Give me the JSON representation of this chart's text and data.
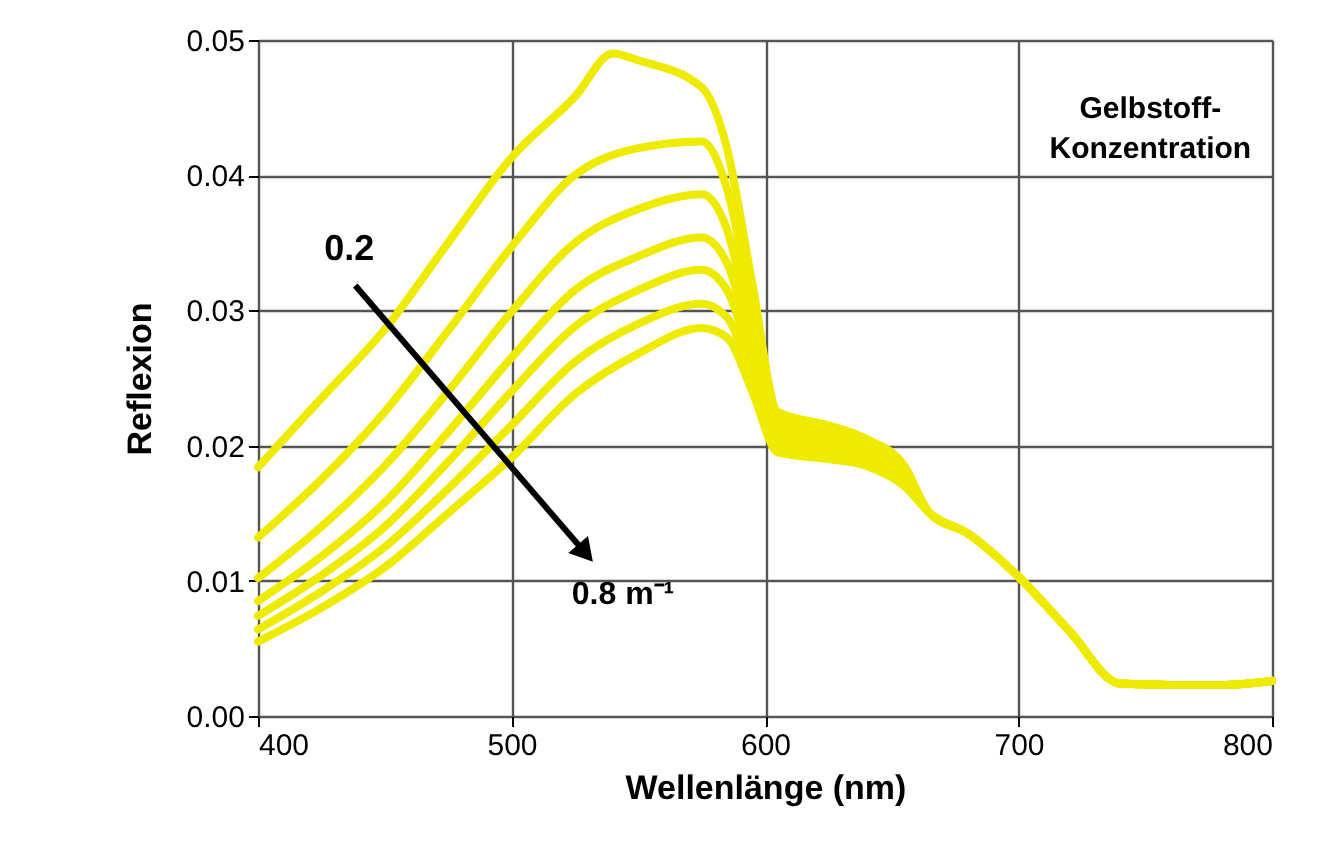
{
  "chart_data": {
    "type": "line",
    "xlabel": "Wellenlänge (nm)",
    "ylabel": "Reflexion",
    "xlim": [
      400,
      800
    ],
    "xticks": [
      400,
      500,
      600,
      700,
      800
    ],
    "ylim": [
      0,
      0.05
    ],
    "yticks": [
      {
        "value": 0,
        "label": "0.00"
      },
      {
        "value": 0.01,
        "label": "0.01"
      },
      {
        "value": 0.02,
        "label": "0.02"
      },
      {
        "value": 0.03,
        "label": "0.03"
      },
      {
        "value": 0.04,
        "label": "0.04"
      },
      {
        "value": 0.05,
        "label": "0.05"
      }
    ],
    "grid": true,
    "marker": "none",
    "line_style": "solid",
    "annotations": [
      "0.2",
      "0.8 m⁻¹",
      "Gelbstoff-\nKonzentration"
    ],
    "series": [
      {
        "color": "#eeea00",
        "x": [
          400,
          425,
          450,
          475,
          500,
          525,
          540,
          550,
          575,
          585,
          595,
          605,
          625,
          640,
          655,
          665,
          680,
          700,
          720,
          740,
          760,
          780,
          800
        ],
        "values": [
          0.0184,
          0.0235,
          0.0286,
          0.035,
          0.0413,
          0.0458,
          0.049,
          0.0485,
          0.0465,
          0.042,
          0.032,
          0.0225,
          0.0215,
          0.0205,
          0.0185,
          0.015,
          0.0135,
          0.0103,
          0.0063,
          0.0024,
          0.0023,
          0.0023,
          0.0026
        ]
      },
      {
        "color": "#eeea00",
        "x": [
          400,
          425,
          450,
          475,
          500,
          525,
          550,
          575,
          585,
          595,
          605,
          625,
          640,
          655,
          665,
          680,
          700,
          720,
          740,
          760,
          780,
          800
        ],
        "values": [
          0.0132,
          0.0175,
          0.0225,
          0.0285,
          0.0347,
          0.04,
          0.042,
          0.0425,
          0.039,
          0.03,
          0.022,
          0.021,
          0.02,
          0.018,
          0.015,
          0.0135,
          0.0103,
          0.0063,
          0.0024,
          0.0023,
          0.0023,
          0.0026
        ]
      },
      {
        "color": "#eeea00",
        "x": [
          400,
          425,
          450,
          475,
          500,
          525,
          550,
          575,
          585,
          595,
          605,
          625,
          640,
          655,
          665,
          680,
          700,
          720,
          740,
          760,
          780,
          800
        ],
        "values": [
          0.0102,
          0.014,
          0.0185,
          0.024,
          0.0299,
          0.035,
          0.0375,
          0.0386,
          0.036,
          0.028,
          0.0215,
          0.0205,
          0.0195,
          0.0178,
          0.015,
          0.0135,
          0.0103,
          0.0063,
          0.0024,
          0.0023,
          0.0023,
          0.0026
        ]
      },
      {
        "color": "#eeea00",
        "x": [
          400,
          425,
          450,
          475,
          500,
          525,
          550,
          575,
          585,
          595,
          605,
          625,
          640,
          655,
          665,
          680,
          700,
          720,
          740,
          760,
          780,
          800
        ],
        "values": [
          0.0085,
          0.0118,
          0.0158,
          0.021,
          0.0265,
          0.0315,
          0.034,
          0.0354,
          0.0335,
          0.027,
          0.021,
          0.0202,
          0.0192,
          0.0176,
          0.015,
          0.0135,
          0.0103,
          0.0063,
          0.0024,
          0.0023,
          0.0023,
          0.0026
        ]
      },
      {
        "color": "#eeea00",
        "x": [
          400,
          425,
          450,
          475,
          500,
          525,
          550,
          575,
          585,
          595,
          605,
          625,
          640,
          655,
          665,
          680,
          700,
          720,
          740,
          760,
          780,
          800
        ],
        "values": [
          0.0074,
          0.0104,
          0.014,
          0.0188,
          0.024,
          0.0288,
          0.0315,
          0.033,
          0.0315,
          0.026,
          0.0205,
          0.0198,
          0.019,
          0.0174,
          0.015,
          0.0135,
          0.0103,
          0.0063,
          0.0024,
          0.0023,
          0.0023,
          0.0026
        ]
      },
      {
        "color": "#eeea00",
        "x": [
          400,
          425,
          450,
          475,
          500,
          525,
          550,
          575,
          585,
          595,
          605,
          625,
          640,
          655,
          665,
          680,
          700,
          720,
          740,
          760,
          780,
          800
        ],
        "values": [
          0.0064,
          0.0092,
          0.0125,
          0.0168,
          0.0215,
          0.0262,
          0.029,
          0.0305,
          0.0295,
          0.025,
          0.02,
          0.0195,
          0.0188,
          0.0172,
          0.015,
          0.0135,
          0.0103,
          0.0063,
          0.0024,
          0.0023,
          0.0023,
          0.0026
        ]
      },
      {
        "color": "#eeea00",
        "x": [
          400,
          425,
          450,
          475,
          500,
          525,
          550,
          575,
          585,
          595,
          605,
          625,
          640,
          655,
          665,
          680,
          700,
          720,
          740,
          760,
          780,
          800
        ],
        "values": [
          0.0055,
          0.008,
          0.011,
          0.015,
          0.0191,
          0.0238,
          0.0268,
          0.0287,
          0.028,
          0.024,
          0.0195,
          0.019,
          0.0185,
          0.017,
          0.015,
          0.0135,
          0.0103,
          0.0063,
          0.0024,
          0.0023,
          0.0023,
          0.0026
        ]
      }
    ]
  }
}
